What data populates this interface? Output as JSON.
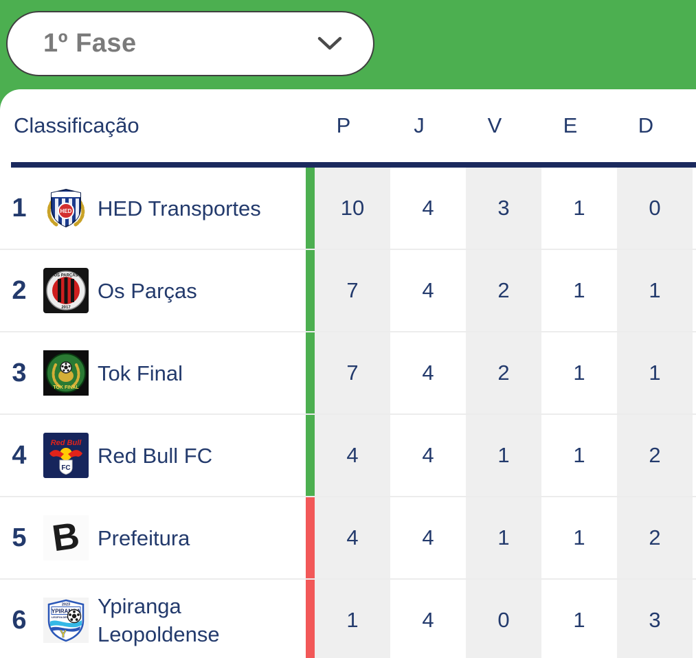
{
  "phase_selector": {
    "value": "1º Fase"
  },
  "table": {
    "classification_label": "Classificação",
    "columns": [
      "P",
      "J",
      "V",
      "E",
      "D"
    ],
    "rows": [
      {
        "position": "1",
        "team": "HED Transportes",
        "badge": "hed-transportes-badge",
        "badge_text": {
          "center": "HED"
        },
        "zone": "green",
        "stats": [
          "10",
          "4",
          "3",
          "1",
          "0"
        ]
      },
      {
        "position": "2",
        "team": "Os Parças",
        "badge": "os-parcas-badge",
        "badge_text": {
          "top": "OS PARÇAS",
          "bottom": "2017"
        },
        "zone": "green",
        "stats": [
          "7",
          "4",
          "2",
          "1",
          "1"
        ]
      },
      {
        "position": "3",
        "team": "Tok Final",
        "badge": "tok-final-badge",
        "badge_text": {
          "bottom": "TOK FINAL"
        },
        "zone": "green",
        "stats": [
          "7",
          "4",
          "2",
          "1",
          "1"
        ]
      },
      {
        "position": "4",
        "team": "Red Bull FC",
        "badge": "red-bull-fc-badge",
        "badge_text": {
          "top": "Red Bull",
          "bottom": "FC"
        },
        "zone": "green",
        "stats": [
          "4",
          "4",
          "1",
          "1",
          "2"
        ]
      },
      {
        "position": "5",
        "team": "Prefeitura",
        "badge": "prefeitura-badge",
        "badge_text": {
          "center": "B"
        },
        "zone": "red",
        "stats": [
          "4",
          "4",
          "1",
          "1",
          "2"
        ]
      },
      {
        "position": "6",
        "team": "Ypiranga Leopoldense",
        "badge": "ypiranga-leopoldense-badge",
        "badge_text": {
          "year": "2023",
          "banner": "YPIRANGA",
          "sub": "LEOPOLDENSE",
          "initial": "Y"
        },
        "zone": "red",
        "stats": [
          "1",
          "4",
          "0",
          "1",
          "3"
        ]
      }
    ]
  },
  "colors": {
    "header_green": "#4CAF50",
    "zone_green": "#4CAF50",
    "zone_red": "#F25858",
    "navy_text": "#233A6C",
    "rule_navy": "#1B2A5E",
    "cell_gray": "#EFEFEF"
  }
}
